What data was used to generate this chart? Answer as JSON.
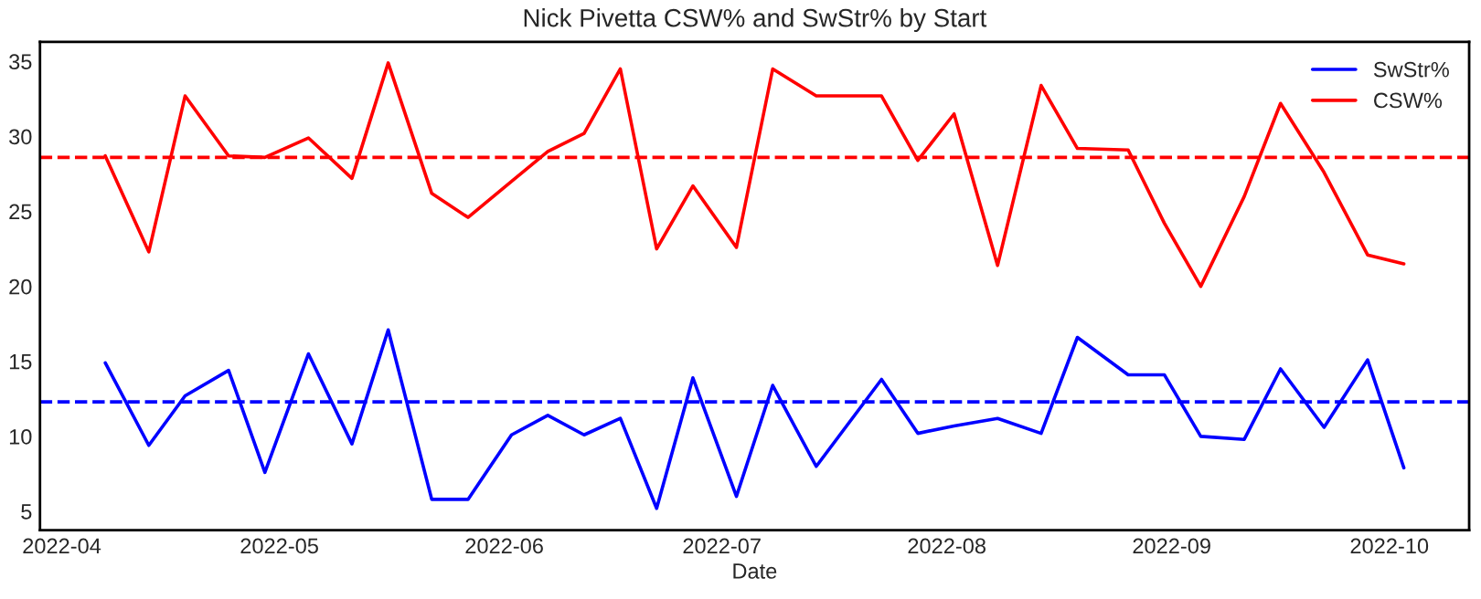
{
  "chart_data": {
    "type": "line",
    "title": "Nick Pivetta CSW% and SwStr% by Start",
    "xlabel": "Date",
    "x": [
      "2022-04-07",
      "2022-04-13",
      "2022-04-18",
      "2022-04-24",
      "2022-04-29",
      "2022-05-05",
      "2022-05-11",
      "2022-05-16",
      "2022-05-22",
      "2022-05-27",
      "2022-06-02",
      "2022-06-07",
      "2022-06-12",
      "2022-06-17",
      "2022-06-22",
      "2022-06-27",
      "2022-07-03",
      "2022-07-08",
      "2022-07-14",
      "2022-07-23",
      "2022-07-28",
      "2022-08-02",
      "2022-08-08",
      "2022-08-14",
      "2022-08-19",
      "2022-08-26",
      "2022-08-31",
      "2022-09-05",
      "2022-09-11",
      "2022-09-16",
      "2022-09-22",
      "2022-09-28",
      "2022-10-03"
    ],
    "series": [
      {
        "name": "SwStr%",
        "color": "#0000ff",
        "values": [
          14.9,
          9.4,
          12.7,
          14.4,
          7.6,
          15.5,
          9.5,
          17.1,
          5.8,
          5.8,
          10.1,
          11.4,
          10.1,
          11.2,
          5.2,
          13.9,
          6.0,
          13.4,
          8.0,
          13.8,
          10.2,
          10.7,
          11.2,
          10.2,
          16.6,
          14.1,
          14.1,
          10.0,
          9.8,
          14.5,
          10.6,
          15.1,
          7.9
        ]
      },
      {
        "name": "CSW%",
        "color": "#ff0000",
        "values": [
          28.7,
          22.3,
          32.7,
          28.7,
          28.6,
          29.9,
          27.2,
          34.9,
          26.2,
          24.6,
          27.0,
          29.0,
          30.2,
          34.5,
          22.5,
          26.7,
          22.6,
          34.5,
          32.7,
          32.7,
          28.4,
          31.5,
          21.4,
          33.4,
          29.2,
          29.1,
          24.2,
          20.0,
          26.0,
          32.2,
          27.6,
          22.1,
          21.5
        ]
      }
    ],
    "ref_lines": [
      {
        "axis": "y",
        "value": 12.3,
        "color": "#0000ff",
        "line_style": "dashed"
      },
      {
        "axis": "y",
        "value": 28.6,
        "color": "#ff0000",
        "line_style": "dashed"
      }
    ],
    "xlim": [
      "2022-03-29",
      "2022-10-12"
    ],
    "xticks": [
      "2022-04",
      "2022-05",
      "2022-06",
      "2022-07",
      "2022-08",
      "2022-09",
      "2022-10"
    ],
    "ylim": [
      3.75,
      36.3
    ],
    "yticks": [
      5,
      10,
      15,
      20,
      25,
      30,
      35
    ],
    "grid": false,
    "legend": "top right",
    "line_style": "solid",
    "marker": "none"
  }
}
